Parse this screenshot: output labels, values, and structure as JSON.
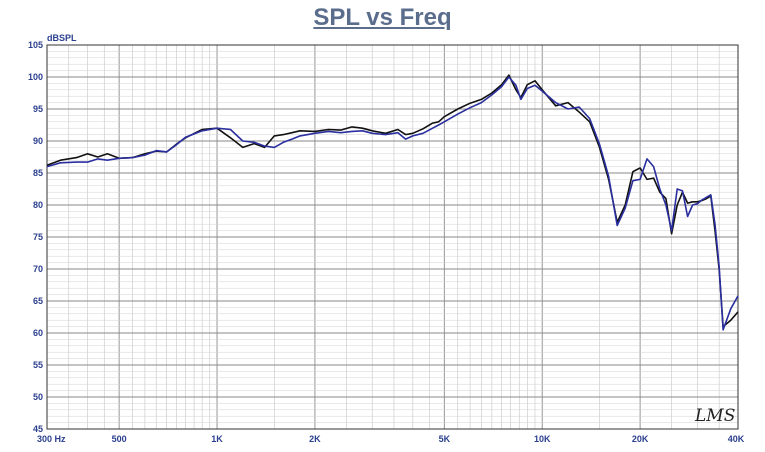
{
  "chart_data": {
    "type": "line",
    "title": "SPL vs Freq",
    "ylabel": "dBSPL",
    "xscale": "log",
    "xlim": [
      300,
      40000
    ],
    "ylim": [
      45,
      105
    ],
    "grid": true,
    "watermark": "LMS",
    "x_ticks": [
      {
        "value": 300,
        "label": "300  Hz"
      },
      {
        "value": 500,
        "label": "500"
      },
      {
        "value": 1000,
        "label": "1K"
      },
      {
        "value": 2000,
        "label": "2K"
      },
      {
        "value": 5000,
        "label": "5K"
      },
      {
        "value": 10000,
        "label": "10K"
      },
      {
        "value": 20000,
        "label": "20K"
      },
      {
        "value": 40000,
        "label": "40K"
      }
    ],
    "y_ticks": [
      105,
      100,
      95,
      90,
      85,
      80,
      75,
      70,
      65,
      60,
      55,
      50,
      45
    ],
    "series": [
      {
        "color": "#111111",
        "x": [
          300,
          330,
          370,
          400,
          430,
          460,
          500,
          550,
          600,
          650,
          700,
          750,
          800,
          900,
          1000,
          1100,
          1200,
          1300,
          1400,
          1500,
          1600,
          1700,
          1800,
          2000,
          2200,
          2400,
          2600,
          2800,
          3000,
          3300,
          3600,
          3800,
          4000,
          4300,
          4600,
          4800,
          5000,
          5500,
          6000,
          6500,
          7000,
          7500,
          7900,
          8300,
          8600,
          9000,
          9500,
          10000,
          11000,
          12000,
          13000,
          14000,
          15000,
          16000,
          17000,
          18000,
          19000,
          20000,
          21000,
          22000,
          23000,
          24000,
          25000,
          26000,
          27000,
          28000,
          29000,
          30000,
          31000,
          32000,
          33000,
          34000,
          35000,
          36000,
          38000,
          40000
        ],
        "y": [
          86.2,
          87.0,
          87.4,
          88.0,
          87.5,
          88.0,
          87.3,
          87.4,
          88.0,
          88.4,
          88.3,
          89.5,
          90.5,
          91.8,
          92.0,
          90.5,
          89.0,
          89.6,
          89.0,
          90.8,
          91.0,
          91.3,
          91.6,
          91.5,
          91.8,
          91.7,
          92.2,
          92.0,
          91.6,
          91.2,
          91.8,
          91.0,
          91.2,
          91.9,
          92.8,
          93.0,
          93.8,
          95.0,
          95.9,
          96.5,
          97.5,
          98.8,
          100.3,
          98.0,
          96.8,
          98.8,
          99.4,
          98.0,
          95.5,
          96.0,
          94.5,
          93.0,
          89.0,
          84.0,
          77.3,
          80.0,
          85.2,
          85.8,
          84.0,
          84.2,
          82.0,
          81.0,
          75.5,
          80.0,
          82.0,
          80.3,
          80.5,
          80.5,
          80.7,
          81.0,
          81.4,
          76.0,
          70.0,
          61.0,
          62.0,
          63.3
        ]
      },
      {
        "color": "#2a2fa0",
        "x": [
          300,
          330,
          370,
          400,
          430,
          460,
          500,
          550,
          600,
          650,
          700,
          750,
          800,
          900,
          1000,
          1100,
          1200,
          1300,
          1400,
          1500,
          1600,
          1700,
          1800,
          2000,
          2200,
          2400,
          2600,
          2800,
          3000,
          3300,
          3600,
          3800,
          4000,
          4300,
          4600,
          4800,
          5000,
          5500,
          6000,
          6500,
          7000,
          7500,
          7900,
          8300,
          8600,
          9000,
          9500,
          10000,
          11000,
          12000,
          13000,
          14000,
          15000,
          16000,
          17000,
          18000,
          19000,
          20000,
          21000,
          22000,
          23000,
          24000,
          25000,
          26000,
          27000,
          28000,
          29000,
          30000,
          31000,
          32000,
          33000,
          34000,
          35000,
          36000,
          38000,
          40000
        ],
        "y": [
          86.0,
          86.6,
          86.7,
          86.7,
          87.2,
          87.0,
          87.3,
          87.4,
          87.8,
          88.5,
          88.3,
          89.4,
          90.6,
          91.6,
          92.0,
          91.8,
          90.0,
          89.8,
          89.2,
          89.0,
          89.8,
          90.3,
          90.8,
          91.2,
          91.5,
          91.3,
          91.5,
          91.6,
          91.2,
          91.0,
          91.3,
          90.3,
          90.8,
          91.2,
          92.0,
          92.5,
          93.0,
          94.2,
          95.2,
          96.0,
          97.2,
          98.5,
          100.0,
          98.7,
          96.5,
          98.2,
          98.7,
          97.8,
          96.0,
          95.0,
          95.3,
          93.5,
          89.5,
          84.5,
          76.8,
          79.5,
          83.8,
          84.0,
          87.2,
          86.0,
          82.5,
          80.0,
          76.0,
          82.5,
          82.2,
          78.2,
          80.0,
          80.2,
          80.8,
          81.2,
          81.6,
          77.0,
          70.5,
          60.5,
          63.8,
          65.8
        ]
      }
    ]
  }
}
